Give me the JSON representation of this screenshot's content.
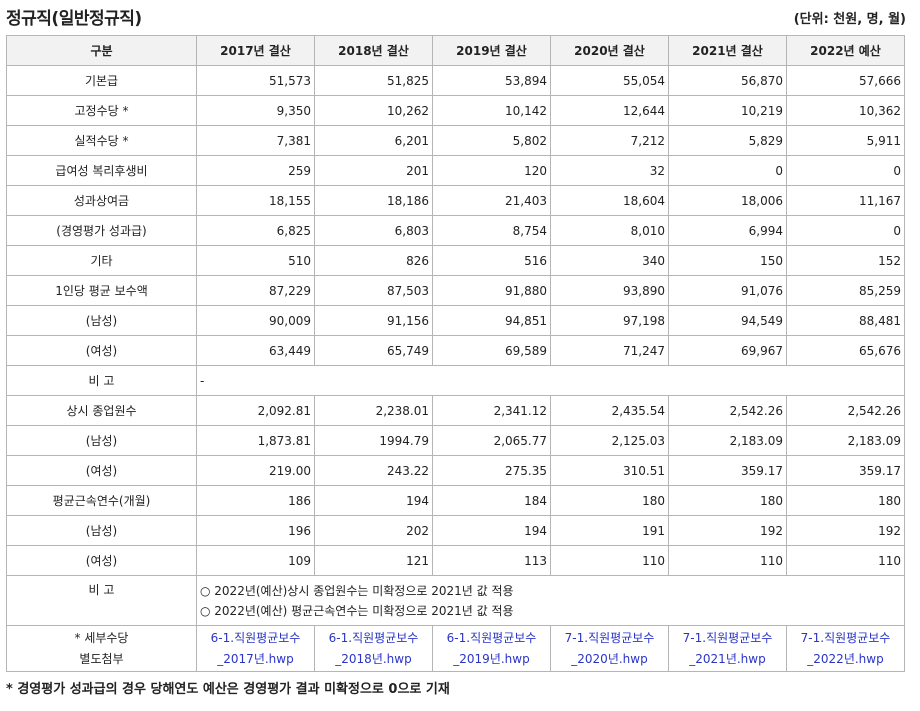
{
  "title": "정규직(일반정규직)",
  "unit": "(단위: 천원, 명, 월)",
  "headers": [
    "구분",
    "2017년 결산",
    "2018년 결산",
    "2019년 결산",
    "2020년 결산",
    "2021년 결산",
    "2022년 예산"
  ],
  "rows": [
    {
      "label": "기본급",
      "values": [
        "51,573",
        "51,825",
        "53,894",
        "55,054",
        "56,870",
        "57,666"
      ]
    },
    {
      "label": "고정수당 *",
      "values": [
        "9,350",
        "10,262",
        "10,142",
        "12,644",
        "10,219",
        "10,362"
      ]
    },
    {
      "label": "실적수당 *",
      "values": [
        "7,381",
        "6,201",
        "5,802",
        "7,212",
        "5,829",
        "5,911"
      ]
    },
    {
      "label": "급여성 복리후생비",
      "values": [
        "259",
        "201",
        "120",
        "32",
        "0",
        "0"
      ]
    },
    {
      "label": "성과상여금",
      "values": [
        "18,155",
        "18,186",
        "21,403",
        "18,604",
        "18,006",
        "11,167"
      ]
    },
    {
      "label": "(경영평가 성과급)",
      "values": [
        "6,825",
        "6,803",
        "8,754",
        "8,010",
        "6,994",
        "0"
      ]
    },
    {
      "label": "기타",
      "values": [
        "510",
        "826",
        "516",
        "340",
        "150",
        "152"
      ]
    },
    {
      "label": "1인당 평균 보수액",
      "values": [
        "87,229",
        "87,503",
        "91,880",
        "93,890",
        "91,076",
        "85,259"
      ]
    },
    {
      "label": "(남성)",
      "values": [
        "90,009",
        "91,156",
        "94,851",
        "97,198",
        "94,549",
        "88,481"
      ]
    },
    {
      "label": "(여성)",
      "values": [
        "63,449",
        "65,749",
        "69,589",
        "71,247",
        "69,967",
        "65,676"
      ]
    }
  ],
  "remark1": {
    "label": "비 고",
    "text": "-"
  },
  "rows2": [
    {
      "label": "상시 종업원수",
      "values": [
        "2,092.81",
        "2,238.01",
        "2,341.12",
        "2,435.54",
        "2,542.26",
        "2,542.26"
      ]
    },
    {
      "label": "(남성)",
      "values": [
        "1,873.81",
        "1994.79",
        "2,065.77",
        "2,125.03",
        "2,183.09",
        "2,183.09"
      ]
    },
    {
      "label": "(여성)",
      "values": [
        "219.00",
        "243.22",
        "275.35",
        "310.51",
        "359.17",
        "359.17"
      ]
    },
    {
      "label": "평균근속연수(개월)",
      "values": [
        "186",
        "194",
        "184",
        "180",
        "180",
        "180"
      ]
    },
    {
      "label": "(남성)",
      "values": [
        "196",
        "202",
        "194",
        "191",
        "192",
        "192"
      ]
    },
    {
      "label": "(여성)",
      "values": [
        "109",
        "121",
        "113",
        "110",
        "110",
        "110"
      ]
    }
  ],
  "remark2": {
    "label": "비 고",
    "lines": [
      "○ 2022년(예산)상시 종업원수는 미확정으로 2021년 값 적용",
      "○ 2022년(예산) 평균근속연수는 미확정으로 2021년 값 적용"
    ]
  },
  "files": {
    "label1": "* 세부수당",
    "label2": "별도첨부",
    "items": [
      {
        "line1": "6-1.직원평균보수",
        "line2": "_2017년.hwp"
      },
      {
        "line1": "6-1.직원평균보수",
        "line2": "_2018년.hwp"
      },
      {
        "line1": "6-1.직원평균보수",
        "line2": "_2019년.hwp"
      },
      {
        "line1": "7-1.직원평균보수",
        "line2": "_2020년.hwp"
      },
      {
        "line1": "7-1.직원평균보수",
        "line2": "_2021년.hwp"
      },
      {
        "line1": "7-1.직원평균보수",
        "line2": "_2022년.hwp"
      }
    ]
  },
  "footnote": "* 경영평가 성과급의 경우 당해연도 예산은 경영평가 결과 미확정으로 0으로 기재",
  "colors": {
    "link": "#2a35c8",
    "header_bg": "#f2f2f2",
    "border": "#b5b5b5"
  }
}
